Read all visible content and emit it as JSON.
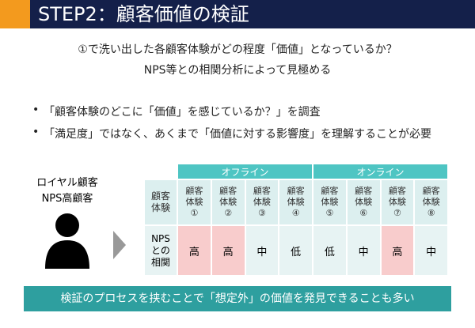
{
  "header": {
    "title": "STEP2：顧客価値の検証"
  },
  "lead": [
    "①で洗い出した各顧客体験がどの程度「価値」となっているか？",
    "NPS等との相関分析によって見極める"
  ],
  "bullets": [
    "「顧客体験のどこに「価値」を感じているか？」を調査",
    "「満足度」ではなく、あくまで「価値に対する影響度」を理解することが必要"
  ],
  "segment": [
    "ロイヤル顧客",
    "NPS高顧客"
  ],
  "table": {
    "groups": [
      {
        "label": "オフライン",
        "span": 4
      },
      {
        "label": "オンライン",
        "span": 4
      }
    ],
    "row_header": [
      "顧客",
      "体験"
    ],
    "columns": [
      [
        "顧客",
        "体験",
        "①"
      ],
      [
        "顧客",
        "体験",
        "②"
      ],
      [
        "顧客",
        "体験",
        "③"
      ],
      [
        "顧客",
        "体験",
        "④"
      ],
      [
        "顧客",
        "体験",
        "⑤"
      ],
      [
        "顧客",
        "体験",
        "⑥"
      ],
      [
        "顧客",
        "体験",
        "⑦"
      ],
      [
        "顧客",
        "体験",
        "⑧"
      ]
    ],
    "row_label": [
      "NPS",
      "との",
      "相関"
    ],
    "values": [
      "高",
      "高",
      "中",
      "低",
      "低",
      "中",
      "高",
      "中"
    ],
    "highlight": [
      true,
      true,
      false,
      false,
      false,
      false,
      true,
      false
    ]
  },
  "footer": "検証のプロセスを挟むことで「想定外」の価値を発見できることも多い"
}
